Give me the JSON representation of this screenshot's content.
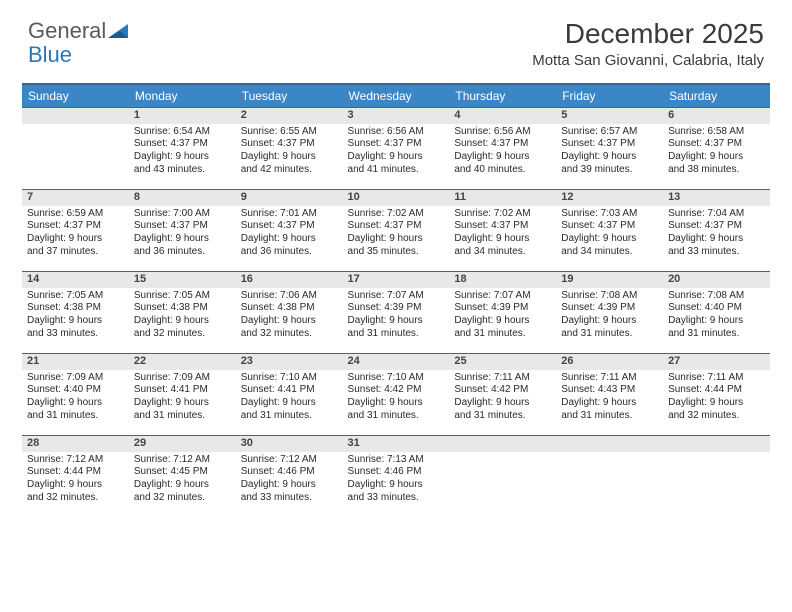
{
  "logo": {
    "text1": "General",
    "text2": "Blue"
  },
  "title": "December 2025",
  "location": "Motta San Giovanni, Calabria, Italy",
  "colors": {
    "header_bg": "#3b86c6",
    "header_border": "#2d6aa0",
    "daynum_bg": "#e8e8e8",
    "text": "#2a2a2a",
    "logo_gray": "#5a5a5a",
    "logo_blue": "#2d77b8"
  },
  "day_headers": [
    "Sunday",
    "Monday",
    "Tuesday",
    "Wednesday",
    "Thursday",
    "Friday",
    "Saturday"
  ],
  "weeks": [
    {
      "nums": [
        "",
        "1",
        "2",
        "3",
        "4",
        "5",
        "6"
      ],
      "cells": [
        [],
        [
          "Sunrise: 6:54 AM",
          "Sunset: 4:37 PM",
          "Daylight: 9 hours",
          "and 43 minutes."
        ],
        [
          "Sunrise: 6:55 AM",
          "Sunset: 4:37 PM",
          "Daylight: 9 hours",
          "and 42 minutes."
        ],
        [
          "Sunrise: 6:56 AM",
          "Sunset: 4:37 PM",
          "Daylight: 9 hours",
          "and 41 minutes."
        ],
        [
          "Sunrise: 6:56 AM",
          "Sunset: 4:37 PM",
          "Daylight: 9 hours",
          "and 40 minutes."
        ],
        [
          "Sunrise: 6:57 AM",
          "Sunset: 4:37 PM",
          "Daylight: 9 hours",
          "and 39 minutes."
        ],
        [
          "Sunrise: 6:58 AM",
          "Sunset: 4:37 PM",
          "Daylight: 9 hours",
          "and 38 minutes."
        ]
      ]
    },
    {
      "nums": [
        "7",
        "8",
        "9",
        "10",
        "11",
        "12",
        "13"
      ],
      "cells": [
        [
          "Sunrise: 6:59 AM",
          "Sunset: 4:37 PM",
          "Daylight: 9 hours",
          "and 37 minutes."
        ],
        [
          "Sunrise: 7:00 AM",
          "Sunset: 4:37 PM",
          "Daylight: 9 hours",
          "and 36 minutes."
        ],
        [
          "Sunrise: 7:01 AM",
          "Sunset: 4:37 PM",
          "Daylight: 9 hours",
          "and 36 minutes."
        ],
        [
          "Sunrise: 7:02 AM",
          "Sunset: 4:37 PM",
          "Daylight: 9 hours",
          "and 35 minutes."
        ],
        [
          "Sunrise: 7:02 AM",
          "Sunset: 4:37 PM",
          "Daylight: 9 hours",
          "and 34 minutes."
        ],
        [
          "Sunrise: 7:03 AM",
          "Sunset: 4:37 PM",
          "Daylight: 9 hours",
          "and 34 minutes."
        ],
        [
          "Sunrise: 7:04 AM",
          "Sunset: 4:37 PM",
          "Daylight: 9 hours",
          "and 33 minutes."
        ]
      ]
    },
    {
      "nums": [
        "14",
        "15",
        "16",
        "17",
        "18",
        "19",
        "20"
      ],
      "cells": [
        [
          "Sunrise: 7:05 AM",
          "Sunset: 4:38 PM",
          "Daylight: 9 hours",
          "and 33 minutes."
        ],
        [
          "Sunrise: 7:05 AM",
          "Sunset: 4:38 PM",
          "Daylight: 9 hours",
          "and 32 minutes."
        ],
        [
          "Sunrise: 7:06 AM",
          "Sunset: 4:38 PM",
          "Daylight: 9 hours",
          "and 32 minutes."
        ],
        [
          "Sunrise: 7:07 AM",
          "Sunset: 4:39 PM",
          "Daylight: 9 hours",
          "and 31 minutes."
        ],
        [
          "Sunrise: 7:07 AM",
          "Sunset: 4:39 PM",
          "Daylight: 9 hours",
          "and 31 minutes."
        ],
        [
          "Sunrise: 7:08 AM",
          "Sunset: 4:39 PM",
          "Daylight: 9 hours",
          "and 31 minutes."
        ],
        [
          "Sunrise: 7:08 AM",
          "Sunset: 4:40 PM",
          "Daylight: 9 hours",
          "and 31 minutes."
        ]
      ]
    },
    {
      "nums": [
        "21",
        "22",
        "23",
        "24",
        "25",
        "26",
        "27"
      ],
      "cells": [
        [
          "Sunrise: 7:09 AM",
          "Sunset: 4:40 PM",
          "Daylight: 9 hours",
          "and 31 minutes."
        ],
        [
          "Sunrise: 7:09 AM",
          "Sunset: 4:41 PM",
          "Daylight: 9 hours",
          "and 31 minutes."
        ],
        [
          "Sunrise: 7:10 AM",
          "Sunset: 4:41 PM",
          "Daylight: 9 hours",
          "and 31 minutes."
        ],
        [
          "Sunrise: 7:10 AM",
          "Sunset: 4:42 PM",
          "Daylight: 9 hours",
          "and 31 minutes."
        ],
        [
          "Sunrise: 7:11 AM",
          "Sunset: 4:42 PM",
          "Daylight: 9 hours",
          "and 31 minutes."
        ],
        [
          "Sunrise: 7:11 AM",
          "Sunset: 4:43 PM",
          "Daylight: 9 hours",
          "and 31 minutes."
        ],
        [
          "Sunrise: 7:11 AM",
          "Sunset: 4:44 PM",
          "Daylight: 9 hours",
          "and 32 minutes."
        ]
      ]
    },
    {
      "nums": [
        "28",
        "29",
        "30",
        "31",
        "",
        "",
        ""
      ],
      "cells": [
        [
          "Sunrise: 7:12 AM",
          "Sunset: 4:44 PM",
          "Daylight: 9 hours",
          "and 32 minutes."
        ],
        [
          "Sunrise: 7:12 AM",
          "Sunset: 4:45 PM",
          "Daylight: 9 hours",
          "and 32 minutes."
        ],
        [
          "Sunrise: 7:12 AM",
          "Sunset: 4:46 PM",
          "Daylight: 9 hours",
          "and 33 minutes."
        ],
        [
          "Sunrise: 7:13 AM",
          "Sunset: 4:46 PM",
          "Daylight: 9 hours",
          "and 33 minutes."
        ],
        [],
        [],
        []
      ]
    }
  ]
}
